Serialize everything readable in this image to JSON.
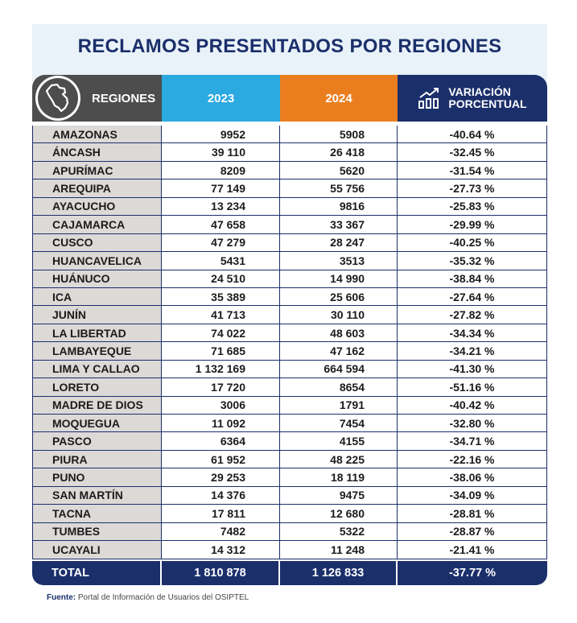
{
  "title": "RECLAMOS PRESENTADOS POR REGIONES",
  "headers": {
    "region": "REGIONES",
    "col_2023": "2023",
    "col_2024": "2024",
    "var_line1": "VARIACIÓN",
    "var_line2": "PORCENTUAL"
  },
  "rows": [
    {
      "region": "AMAZONAS",
      "v2023": "9952",
      "v2024": "5908",
      "var": "-40.64 %"
    },
    {
      "region": "ÁNCASH",
      "v2023": "39 110",
      "v2024": "26 418",
      "var": "-32.45 %"
    },
    {
      "region": "APURÍMAC",
      "v2023": "8209",
      "v2024": "5620",
      "var": "-31.54 %"
    },
    {
      "region": "AREQUIPA",
      "v2023": "77 149",
      "v2024": "55 756",
      "var": "-27.73 %"
    },
    {
      "region": "AYACUCHO",
      "v2023": "13 234",
      "v2024": "9816",
      "var": "-25.83 %"
    },
    {
      "region": "CAJAMARCA",
      "v2023": "47 658",
      "v2024": "33 367",
      "var": "-29.99 %"
    },
    {
      "region": "CUSCO",
      "v2023": "47 279",
      "v2024": "28 247",
      "var": "-40.25 %"
    },
    {
      "region": "HUANCAVELICA",
      "v2023": "5431",
      "v2024": "3513",
      "var": "-35.32 %"
    },
    {
      "region": "HUÁNUCO",
      "v2023": "24 510",
      "v2024": "14 990",
      "var": "-38.84 %"
    },
    {
      "region": "ICA",
      "v2023": "35 389",
      "v2024": "25 606",
      "var": "-27.64 %"
    },
    {
      "region": "JUNÍN",
      "v2023": "41 713",
      "v2024": "30 110",
      "var": "-27.82 %"
    },
    {
      "region": "LA LIBERTAD",
      "v2023": "74 022",
      "v2024": "48 603",
      "var": "-34.34 %"
    },
    {
      "region": "LAMBAYEQUE",
      "v2023": "71 685",
      "v2024": "47 162",
      "var": "-34.21 %"
    },
    {
      "region": "LIMA Y CALLAO",
      "v2023": "1 132 169",
      "v2024": "664 594",
      "var": "-41.30 %"
    },
    {
      "region": "LORETO",
      "v2023": "17 720",
      "v2024": "8654",
      "var": "-51.16 %"
    },
    {
      "region": "MADRE DE DIOS",
      "v2023": "3006",
      "v2024": "1791",
      "var": "-40.42 %"
    },
    {
      "region": "MOQUEGUA",
      "v2023": "11 092",
      "v2024": "7454",
      "var": "-32.80 %"
    },
    {
      "region": "PASCO",
      "v2023": "6364",
      "v2024": "4155",
      "var": "-34.71 %"
    },
    {
      "region": "PIURA",
      "v2023": "61 952",
      "v2024": "48 225",
      "var": "-22.16 %"
    },
    {
      "region": "PUNO",
      "v2023": "29 253",
      "v2024": "18 119",
      "var": "-38.06 %"
    },
    {
      "region": "SAN MARTÍN",
      "v2023": "14 376",
      "v2024": "9475",
      "var": "-34.09 %"
    },
    {
      "region": "TACNA",
      "v2023": "17 811",
      "v2024": "12 680",
      "var": "-28.81 %"
    },
    {
      "region": "TUMBES",
      "v2023": "7482",
      "v2024": "5322",
      "var": "-28.87 %"
    },
    {
      "region": "UCAYALI",
      "v2023": "14 312",
      "v2024": "11 248",
      "var": "-21.41 %"
    }
  ],
  "total": {
    "label": "TOTAL",
    "v2023": "1 810 878",
    "v2024": "1 126 833",
    "var": "-37.77 %"
  },
  "source_label": "Fuente:",
  "source_text": "Portal de Información de Usuarios del OSIPTEL",
  "icons": {
    "region_header": "peru-map-icon",
    "variation_header": "growth-chart-icon"
  },
  "colors": {
    "title": "#1b2f6b",
    "header_region": "#4d4d4d",
    "header_2023": "#2ba9e1",
    "header_2024": "#ea7e1e",
    "header_variation": "#1b2f6b",
    "total_row": "#1b2f6b",
    "region_cell": "#dcd9d7"
  },
  "chart_data": {
    "type": "table",
    "title": "RECLAMOS PRESENTADOS POR REGIONES",
    "columns": [
      "REGIONES",
      "2023",
      "2024",
      "VARIACIÓN PORCENTUAL"
    ]
  }
}
